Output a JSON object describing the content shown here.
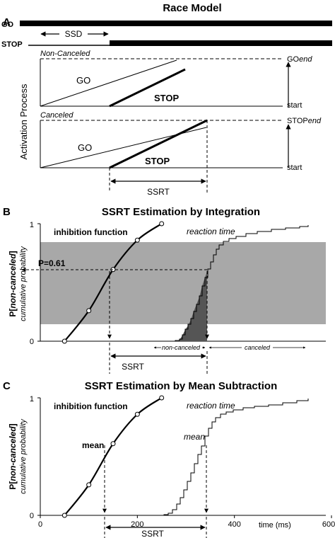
{
  "panel_a": {
    "letter": "A",
    "title": "Race Model",
    "go_label": "GO",
    "stop_label": "STOP",
    "ssd_label": "SSD",
    "ylabel": "Activation Process",
    "non_canceled_label": "Non-Canceled",
    "canceled_label": "Canceled",
    "go_line_label": "GO",
    "stop_line_label": "STOP",
    "go_end_label_plain": "GO",
    "go_end_label_italic": "end",
    "stop_end_label_plain": "STOP",
    "stop_end_label_italic": "end",
    "start_label": "start",
    "ssrt_label": "SSRT"
  },
  "panel_b": {
    "letter": "B",
    "title": "SSRT Estimation by Integration",
    "ylabel_main_pre": "P[",
    "ylabel_main_italic": "non-canceled",
    "ylabel_main_post": "]",
    "ylabel_sub": "cumulative probability",
    "y_tick_labels": [
      "0",
      "1"
    ],
    "inhibition_label": "inhibition function",
    "rt_label": "reaction time",
    "p_label": "P=0.61",
    "non_canceled_label": "non-canceled",
    "canceled_label": "canceled",
    "ssrt_label": "SSRT"
  },
  "panel_c": {
    "letter": "C",
    "title": "SSRT Estimation by Mean Subtraction",
    "ylabel_main_pre": "P[",
    "ylabel_main_italic": "non-canceled",
    "ylabel_main_post": "]",
    "ylabel_sub": "cumulative probability",
    "y_tick_labels": [
      "0",
      "1"
    ],
    "x_tick_labels": [
      "0",
      "200",
      "400",
      "600"
    ],
    "x_axis_label": "time (ms)",
    "inhibition_label": "inhibition function",
    "rt_label": "reaction time",
    "mean_label_left": "mean",
    "mean_label_right": "mean",
    "ssrt_label": "SSRT"
  },
  "chart_data": [
    {
      "type": "line",
      "panel": "B",
      "title": "SSRT Estimation by Integration",
      "ylim": [
        0,
        1
      ],
      "series": [
        {
          "name": "inhibition function",
          "x": [
            50,
            100,
            150,
            200,
            250
          ],
          "y": [
            0.0,
            0.26,
            0.61,
            0.86,
            1.0
          ]
        }
      ],
      "p_value": 0.61
    },
    {
      "type": "line",
      "panel": "C",
      "title": "SSRT Estimation by Mean Subtraction",
      "xlim": [
        0,
        600
      ],
      "ylim": [
        0,
        1
      ],
      "x_ticks": [
        0,
        200,
        400,
        600
      ],
      "series": [
        {
          "name": "inhibition function",
          "x": [
            50,
            100,
            150,
            200,
            250
          ],
          "y": [
            0.0,
            0.26,
            0.61,
            0.86,
            1.0
          ]
        }
      ]
    }
  ]
}
